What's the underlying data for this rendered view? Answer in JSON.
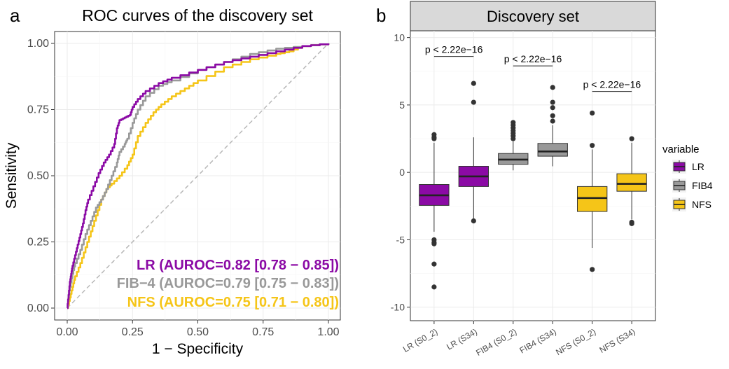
{
  "panels": {
    "a_label": "a",
    "b_label": "b"
  },
  "chart_data": [
    {
      "type": "line",
      "title": "ROC curves of the discovery set",
      "xlabel": "1 − Specificity",
      "ylabel": "Sensitivity",
      "xlim": [
        0,
        1
      ],
      "ylim": [
        0,
        1
      ],
      "xticks": [
        "0.00",
        "0.25",
        "0.50",
        "0.75",
        "1.00"
      ],
      "yticks": [
        "0.00",
        "0.25",
        "0.50",
        "0.75",
        "1.00"
      ],
      "grid": true,
      "diagonal_reference": true,
      "series": [
        {
          "name": "LR",
          "color": "#8b0aa5",
          "label": "LR (AUROC=0.82 [0.78 − 0.85])",
          "points": [
            [
              0,
              0
            ],
            [
              0.005,
              0.05
            ],
            [
              0.01,
              0.1
            ],
            [
              0.015,
              0.13
            ],
            [
              0.02,
              0.16
            ],
            [
              0.03,
              0.2
            ],
            [
              0.04,
              0.24
            ],
            [
              0.05,
              0.28
            ],
            [
              0.06,
              0.32
            ],
            [
              0.07,
              0.37
            ],
            [
              0.08,
              0.41
            ],
            [
              0.1,
              0.46
            ],
            [
              0.12,
              0.51
            ],
            [
              0.14,
              0.55
            ],
            [
              0.16,
              0.58
            ],
            [
              0.18,
              0.62
            ],
            [
              0.19,
              0.68
            ],
            [
              0.2,
              0.71
            ],
            [
              0.22,
              0.72
            ],
            [
              0.24,
              0.73
            ],
            [
              0.25,
              0.76
            ],
            [
              0.27,
              0.79
            ],
            [
              0.3,
              0.82
            ],
            [
              0.35,
              0.85
            ],
            [
              0.4,
              0.87
            ],
            [
              0.5,
              0.9
            ],
            [
              0.6,
              0.93
            ],
            [
              0.7,
              0.95
            ],
            [
              0.8,
              0.97
            ],
            [
              0.9,
              0.99
            ],
            [
              1,
              1
            ]
          ]
        },
        {
          "name": "FIB-4",
          "color": "#999999",
          "label": "FIB−4 (AUROC=0.79 [0.75 − 0.83])",
          "points": [
            [
              0,
              0
            ],
            [
              0.005,
              0.04
            ],
            [
              0.01,
              0.08
            ],
            [
              0.02,
              0.13
            ],
            [
              0.03,
              0.17
            ],
            [
              0.05,
              0.22
            ],
            [
              0.07,
              0.28
            ],
            [
              0.09,
              0.33
            ],
            [
              0.11,
              0.38
            ],
            [
              0.13,
              0.41
            ],
            [
              0.15,
              0.45
            ],
            [
              0.17,
              0.5
            ],
            [
              0.19,
              0.55
            ],
            [
              0.2,
              0.59
            ],
            [
              0.22,
              0.62
            ],
            [
              0.23,
              0.64
            ],
            [
              0.25,
              0.7
            ],
            [
              0.27,
              0.75
            ],
            [
              0.3,
              0.8
            ],
            [
              0.35,
              0.84
            ],
            [
              0.4,
              0.86
            ],
            [
              0.5,
              0.9
            ],
            [
              0.6,
              0.93
            ],
            [
              0.7,
              0.96
            ],
            [
              0.8,
              0.98
            ],
            [
              0.9,
              0.99
            ],
            [
              1,
              1
            ]
          ]
        },
        {
          "name": "NFS",
          "color": "#f5c518",
          "label": "NFS (AUROC=0.75 [0.71 − 0.80])",
          "points": [
            [
              0,
              0
            ],
            [
              0.01,
              0.04
            ],
            [
              0.02,
              0.08
            ],
            [
              0.03,
              0.12
            ],
            [
              0.05,
              0.17
            ],
            [
              0.07,
              0.23
            ],
            [
              0.09,
              0.29
            ],
            [
              0.11,
              0.35
            ],
            [
              0.13,
              0.41
            ],
            [
              0.15,
              0.45
            ],
            [
              0.17,
              0.47
            ],
            [
              0.2,
              0.5
            ],
            [
              0.23,
              0.54
            ],
            [
              0.25,
              0.58
            ],
            [
              0.27,
              0.65
            ],
            [
              0.3,
              0.7
            ],
            [
              0.33,
              0.74
            ],
            [
              0.36,
              0.77
            ],
            [
              0.4,
              0.8
            ],
            [
              0.45,
              0.83
            ],
            [
              0.5,
              0.86
            ],
            [
              0.6,
              0.91
            ],
            [
              0.7,
              0.94
            ],
            [
              0.8,
              0.96
            ],
            [
              0.85,
              0.97
            ],
            [
              0.9,
              0.99
            ],
            [
              1,
              1
            ]
          ]
        }
      ]
    },
    {
      "type": "box",
      "title": "Discovery set",
      "ylim": [
        -11,
        10.5
      ],
      "yticks": [
        -10,
        -5,
        0,
        5,
        10
      ],
      "grid": true,
      "legend": {
        "title": "variable",
        "placement": "right",
        "items": [
          {
            "name": "LR",
            "color": "#8b0aa5"
          },
          {
            "name": "FIB4",
            "color": "#999999"
          },
          {
            "name": "NFS",
            "color": "#f5c518"
          }
        ]
      },
      "categories": [
        "LR (S0_2)",
        "LR (S34)",
        "FIB4 (S0_2)",
        "FIB4 (S34)",
        "NFS (S0_2)",
        "NFS (S34)"
      ],
      "boxes": [
        {
          "group": "LR",
          "q1": -2.45,
          "median": -1.7,
          "q3": -0.9,
          "whisker_low": -4.4,
          "whisker_high": 2.2,
          "outliers": [
            -5.0,
            -5.2,
            -5.3,
            -6.8,
            -8.5,
            2.5,
            2.6,
            2.8
          ]
        },
        {
          "group": "LR",
          "q1": -1.05,
          "median": -0.3,
          "q3": 0.45,
          "whisker_low": -3.5,
          "whisker_high": 2.6,
          "outliers": [
            -3.6,
            5.2,
            6.6
          ]
        },
        {
          "group": "FIB4",
          "q1": 0.6,
          "median": 0.95,
          "q3": 1.4,
          "whisker_low": 0.15,
          "whisker_high": 2.3,
          "outliers": [
            2.5,
            2.7,
            2.9,
            3.1,
            3.3,
            3.5,
            3.7
          ]
        },
        {
          "group": "FIB4",
          "q1": 1.2,
          "median": 1.55,
          "q3": 2.15,
          "whisker_low": 0.45,
          "whisker_high": 3.5,
          "outliers": [
            3.8,
            4.2,
            4.8,
            5.2,
            6.3
          ]
        },
        {
          "group": "NFS",
          "q1": -2.9,
          "median": -1.9,
          "q3": -1.05,
          "whisker_low": -5.6,
          "whisker_high": 1.7,
          "outliers": [
            -7.2,
            2.0,
            4.4
          ]
        },
        {
          "group": "NFS",
          "q1": -1.4,
          "median": -0.85,
          "q3": -0.1,
          "whisker_low": -3.5,
          "whisker_high": 2.2,
          "outliers": [
            -3.7,
            -3.8,
            2.5
          ]
        }
      ],
      "comparisons": [
        {
          "from": 0,
          "to": 1,
          "y": 8.6,
          "label": "p < 2.22e−16"
        },
        {
          "from": 2,
          "to": 3,
          "y": 7.9,
          "label": "p < 2.22e−16"
        },
        {
          "from": 4,
          "to": 5,
          "y": 6.0,
          "label": "p < 2.22e−16"
        }
      ]
    }
  ]
}
